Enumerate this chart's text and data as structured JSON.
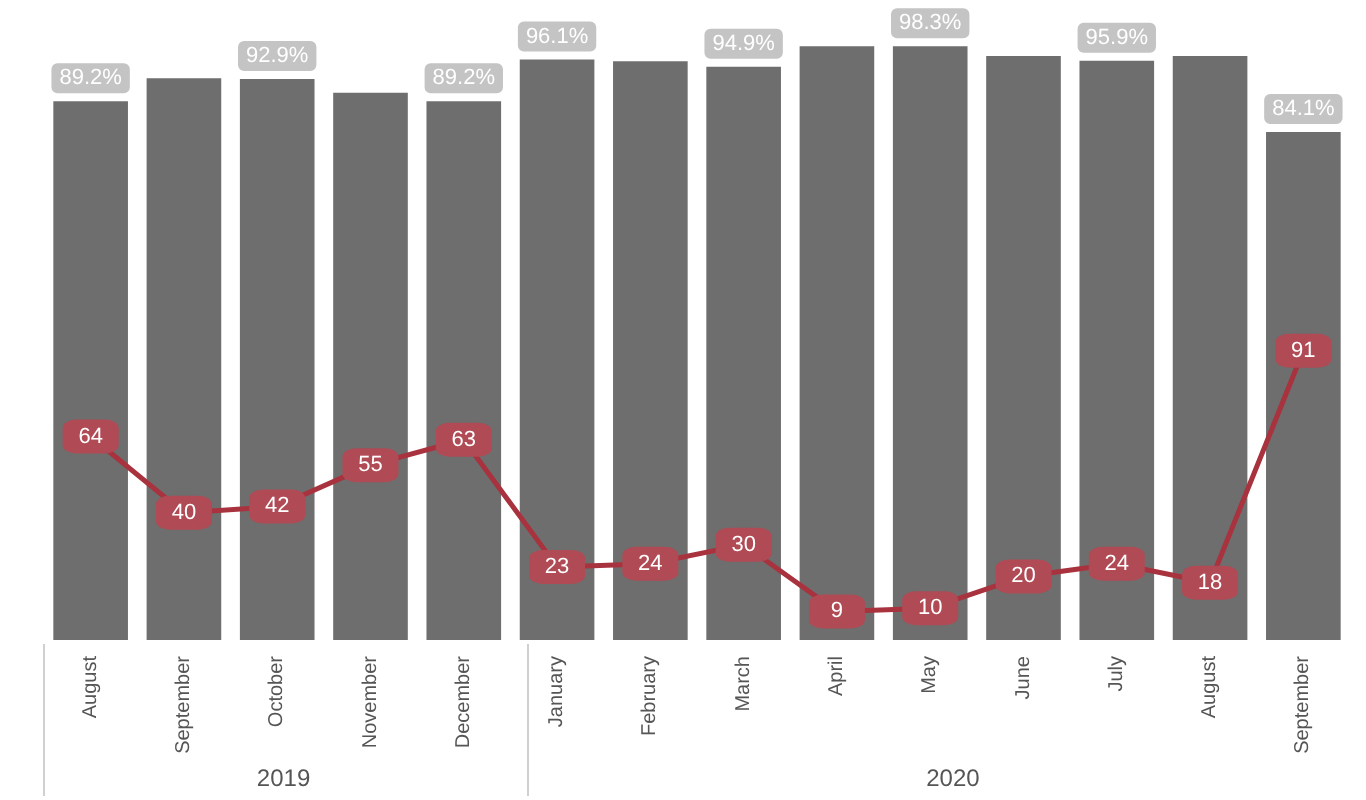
{
  "chart_data": {
    "type": "bar",
    "categories": [
      "August",
      "September",
      "October",
      "November",
      "December",
      "January",
      "February",
      "March",
      "April",
      "May",
      "June",
      "July",
      "August",
      "September"
    ],
    "series": [
      {
        "color": "#6e6e6e",
        "values": [
          89.2,
          93.0,
          92.9,
          90.6,
          89.2,
          96.1,
          95.8,
          94.9,
          98.3,
          98.3,
          96.7,
          95.9,
          96.7,
          84.1
        ],
        "value_labels": [
          "89.2%",
          null,
          "92.9%",
          null,
          "89.2%",
          "96.1%",
          null,
          "94.9%",
          null,
          "98.3%",
          null,
          "95.9%",
          null,
          "84.1%"
        ]
      },
      {
        "type": "line",
        "axis": "y2",
        "color": "#a8323e",
        "marker": "square",
        "values": [
          64,
          40,
          42,
          55,
          63,
          23,
          24,
          30,
          9,
          10,
          20,
          24,
          18,
          91
        ],
        "data_labels": true
      }
    ],
    "ylim": [
      0,
      100
    ],
    "y2lim": [
      0,
      190
    ],
    "annotations": [
      "2019",
      "2020"
    ],
    "tick_labels": "x",
    "grid": false,
    "line_style": "solid"
  }
}
